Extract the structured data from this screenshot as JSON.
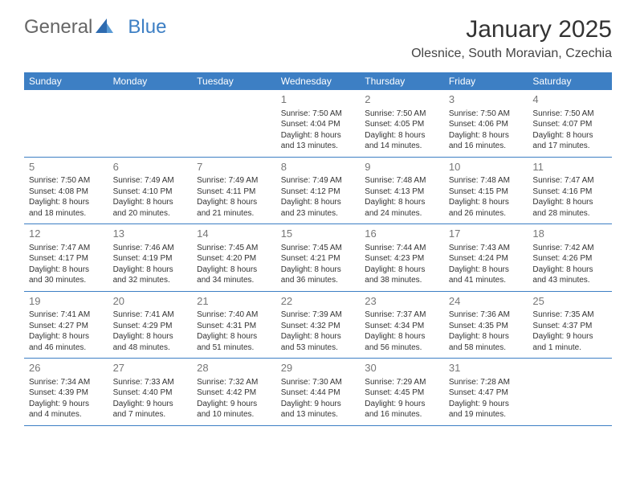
{
  "brand": {
    "part1": "General",
    "part2": "Blue"
  },
  "title": "January 2025",
  "location": "Olesnice, South Moravian, Czechia",
  "colors": {
    "header_bg": "#3d7fc4",
    "header_text": "#ffffff",
    "text": "#333333",
    "daynum": "#777777",
    "border": "#3d7fc4"
  },
  "weekdays": [
    "Sunday",
    "Monday",
    "Tuesday",
    "Wednesday",
    "Thursday",
    "Friday",
    "Saturday"
  ],
  "weeks": [
    [
      {
        "empty": true
      },
      {
        "empty": true
      },
      {
        "empty": true
      },
      {
        "num": "1",
        "sunrise": "Sunrise: 7:50 AM",
        "sunset": "Sunset: 4:04 PM",
        "daylight1": "Daylight: 8 hours",
        "daylight2": "and 13 minutes."
      },
      {
        "num": "2",
        "sunrise": "Sunrise: 7:50 AM",
        "sunset": "Sunset: 4:05 PM",
        "daylight1": "Daylight: 8 hours",
        "daylight2": "and 14 minutes."
      },
      {
        "num": "3",
        "sunrise": "Sunrise: 7:50 AM",
        "sunset": "Sunset: 4:06 PM",
        "daylight1": "Daylight: 8 hours",
        "daylight2": "and 16 minutes."
      },
      {
        "num": "4",
        "sunrise": "Sunrise: 7:50 AM",
        "sunset": "Sunset: 4:07 PM",
        "daylight1": "Daylight: 8 hours",
        "daylight2": "and 17 minutes."
      }
    ],
    [
      {
        "num": "5",
        "sunrise": "Sunrise: 7:50 AM",
        "sunset": "Sunset: 4:08 PM",
        "daylight1": "Daylight: 8 hours",
        "daylight2": "and 18 minutes."
      },
      {
        "num": "6",
        "sunrise": "Sunrise: 7:49 AM",
        "sunset": "Sunset: 4:10 PM",
        "daylight1": "Daylight: 8 hours",
        "daylight2": "and 20 minutes."
      },
      {
        "num": "7",
        "sunrise": "Sunrise: 7:49 AM",
        "sunset": "Sunset: 4:11 PM",
        "daylight1": "Daylight: 8 hours",
        "daylight2": "and 21 minutes."
      },
      {
        "num": "8",
        "sunrise": "Sunrise: 7:49 AM",
        "sunset": "Sunset: 4:12 PM",
        "daylight1": "Daylight: 8 hours",
        "daylight2": "and 23 minutes."
      },
      {
        "num": "9",
        "sunrise": "Sunrise: 7:48 AM",
        "sunset": "Sunset: 4:13 PM",
        "daylight1": "Daylight: 8 hours",
        "daylight2": "and 24 minutes."
      },
      {
        "num": "10",
        "sunrise": "Sunrise: 7:48 AM",
        "sunset": "Sunset: 4:15 PM",
        "daylight1": "Daylight: 8 hours",
        "daylight2": "and 26 minutes."
      },
      {
        "num": "11",
        "sunrise": "Sunrise: 7:47 AM",
        "sunset": "Sunset: 4:16 PM",
        "daylight1": "Daylight: 8 hours",
        "daylight2": "and 28 minutes."
      }
    ],
    [
      {
        "num": "12",
        "sunrise": "Sunrise: 7:47 AM",
        "sunset": "Sunset: 4:17 PM",
        "daylight1": "Daylight: 8 hours",
        "daylight2": "and 30 minutes."
      },
      {
        "num": "13",
        "sunrise": "Sunrise: 7:46 AM",
        "sunset": "Sunset: 4:19 PM",
        "daylight1": "Daylight: 8 hours",
        "daylight2": "and 32 minutes."
      },
      {
        "num": "14",
        "sunrise": "Sunrise: 7:45 AM",
        "sunset": "Sunset: 4:20 PM",
        "daylight1": "Daylight: 8 hours",
        "daylight2": "and 34 minutes."
      },
      {
        "num": "15",
        "sunrise": "Sunrise: 7:45 AM",
        "sunset": "Sunset: 4:21 PM",
        "daylight1": "Daylight: 8 hours",
        "daylight2": "and 36 minutes."
      },
      {
        "num": "16",
        "sunrise": "Sunrise: 7:44 AM",
        "sunset": "Sunset: 4:23 PM",
        "daylight1": "Daylight: 8 hours",
        "daylight2": "and 38 minutes."
      },
      {
        "num": "17",
        "sunrise": "Sunrise: 7:43 AM",
        "sunset": "Sunset: 4:24 PM",
        "daylight1": "Daylight: 8 hours",
        "daylight2": "and 41 minutes."
      },
      {
        "num": "18",
        "sunrise": "Sunrise: 7:42 AM",
        "sunset": "Sunset: 4:26 PM",
        "daylight1": "Daylight: 8 hours",
        "daylight2": "and 43 minutes."
      }
    ],
    [
      {
        "num": "19",
        "sunrise": "Sunrise: 7:41 AM",
        "sunset": "Sunset: 4:27 PM",
        "daylight1": "Daylight: 8 hours",
        "daylight2": "and 46 minutes."
      },
      {
        "num": "20",
        "sunrise": "Sunrise: 7:41 AM",
        "sunset": "Sunset: 4:29 PM",
        "daylight1": "Daylight: 8 hours",
        "daylight2": "and 48 minutes."
      },
      {
        "num": "21",
        "sunrise": "Sunrise: 7:40 AM",
        "sunset": "Sunset: 4:31 PM",
        "daylight1": "Daylight: 8 hours",
        "daylight2": "and 51 minutes."
      },
      {
        "num": "22",
        "sunrise": "Sunrise: 7:39 AM",
        "sunset": "Sunset: 4:32 PM",
        "daylight1": "Daylight: 8 hours",
        "daylight2": "and 53 minutes."
      },
      {
        "num": "23",
        "sunrise": "Sunrise: 7:37 AM",
        "sunset": "Sunset: 4:34 PM",
        "daylight1": "Daylight: 8 hours",
        "daylight2": "and 56 minutes."
      },
      {
        "num": "24",
        "sunrise": "Sunrise: 7:36 AM",
        "sunset": "Sunset: 4:35 PM",
        "daylight1": "Daylight: 8 hours",
        "daylight2": "and 58 minutes."
      },
      {
        "num": "25",
        "sunrise": "Sunrise: 7:35 AM",
        "sunset": "Sunset: 4:37 PM",
        "daylight1": "Daylight: 9 hours",
        "daylight2": "and 1 minute."
      }
    ],
    [
      {
        "num": "26",
        "sunrise": "Sunrise: 7:34 AM",
        "sunset": "Sunset: 4:39 PM",
        "daylight1": "Daylight: 9 hours",
        "daylight2": "and 4 minutes."
      },
      {
        "num": "27",
        "sunrise": "Sunrise: 7:33 AM",
        "sunset": "Sunset: 4:40 PM",
        "daylight1": "Daylight: 9 hours",
        "daylight2": "and 7 minutes."
      },
      {
        "num": "28",
        "sunrise": "Sunrise: 7:32 AM",
        "sunset": "Sunset: 4:42 PM",
        "daylight1": "Daylight: 9 hours",
        "daylight2": "and 10 minutes."
      },
      {
        "num": "29",
        "sunrise": "Sunrise: 7:30 AM",
        "sunset": "Sunset: 4:44 PM",
        "daylight1": "Daylight: 9 hours",
        "daylight2": "and 13 minutes."
      },
      {
        "num": "30",
        "sunrise": "Sunrise: 7:29 AM",
        "sunset": "Sunset: 4:45 PM",
        "daylight1": "Daylight: 9 hours",
        "daylight2": "and 16 minutes."
      },
      {
        "num": "31",
        "sunrise": "Sunrise: 7:28 AM",
        "sunset": "Sunset: 4:47 PM",
        "daylight1": "Daylight: 9 hours",
        "daylight2": "and 19 minutes."
      },
      {
        "empty": true
      }
    ]
  ]
}
